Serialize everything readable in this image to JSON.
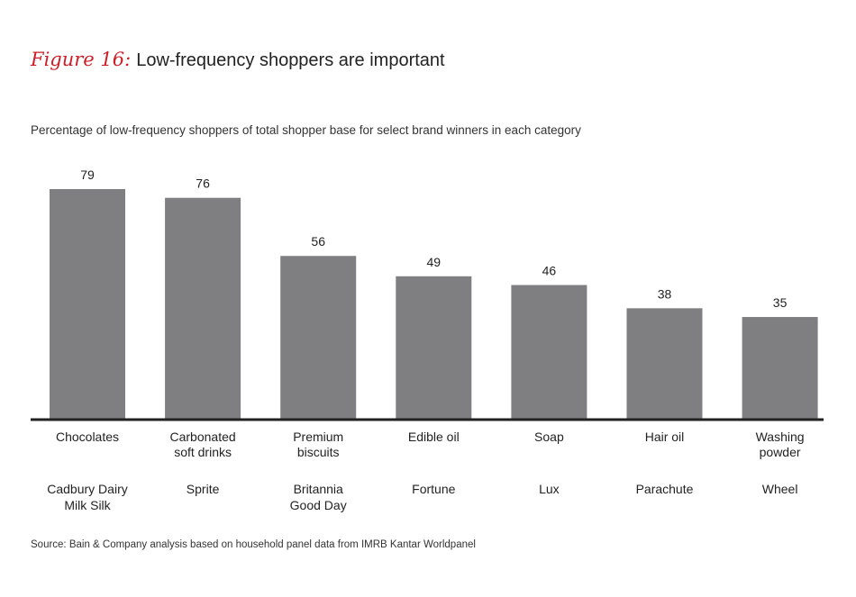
{
  "figure": {
    "label": "Figure 16:",
    "title": "Low-frequency shoppers are important"
  },
  "subtitle": "Percentage of low-frequency shoppers of total shopper base for select brand winners in each category",
  "source": "Source: Bain & Company analysis based on household panel data from IMRB Kantar Worldpanel",
  "colors": {
    "bar": "#7f7e80",
    "accent": "#cc1f27"
  },
  "chart_data": {
    "type": "bar",
    "title": "",
    "xlabel": "",
    "ylabel": "",
    "ylim": [
      0,
      79
    ],
    "grid": false,
    "categories": [
      "Chocolates",
      "Carbonated soft drinks",
      "Premium biscuits",
      "Edible oil",
      "Soap",
      "Hair oil",
      "Washing powder"
    ],
    "category_lines": [
      [
        "Chocolates"
      ],
      [
        "Carbonated",
        "soft drinks"
      ],
      [
        "Premium",
        "biscuits"
      ],
      [
        "Edible oil"
      ],
      [
        "Soap"
      ],
      [
        "Hair oil"
      ],
      [
        "Washing",
        "powder"
      ]
    ],
    "brands": [
      "Cadbury Dairy Milk Silk",
      "Sprite",
      "Britannia Good Day",
      "Fortune",
      "Lux",
      "Parachute",
      "Wheel"
    ],
    "brand_lines": [
      [
        "Cadbury Dairy",
        "Milk Silk"
      ],
      [
        "Sprite"
      ],
      [
        "Britannia",
        "Good Day"
      ],
      [
        "Fortune"
      ],
      [
        "Lux"
      ],
      [
        "Parachute"
      ],
      [
        "Wheel"
      ]
    ],
    "values": [
      79,
      76,
      56,
      49,
      46,
      38,
      35
    ]
  }
}
